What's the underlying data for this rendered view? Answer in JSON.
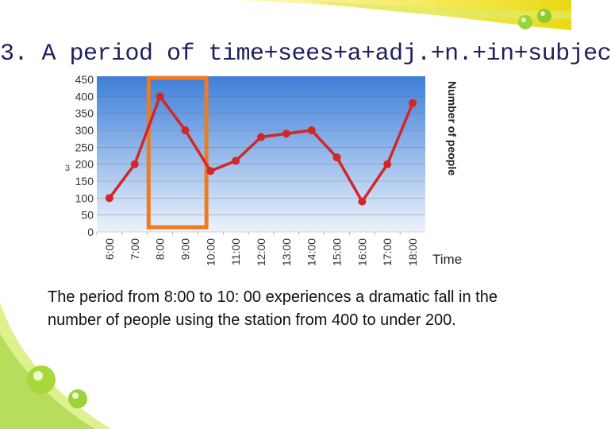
{
  "slide": {
    "title": "3. A period of time+sees+a+adj.+n.+in+subjec",
    "caption": "The period from 8:00 to 10: 00 experiences a dramatic fall in the number of people using the station from 400 to under 200.",
    "stray_mark": "3"
  },
  "colors": {
    "line": "#d32626",
    "highlight": "#f07a1e",
    "plot_top": "#3d7fd9",
    "plot_bottom": "#eef3fb",
    "title": "#1f1f5c"
  },
  "chart_data": {
    "type": "line",
    "x": [
      "6:00",
      "7:00",
      "8:00",
      "9:00",
      "10:00",
      "11:00",
      "12:00",
      "13:00",
      "14:00",
      "15:00",
      "16:00",
      "17:00",
      "18:00"
    ],
    "values": [
      100,
      200,
      400,
      300,
      180,
      210,
      280,
      290,
      300,
      220,
      90,
      200,
      380
    ],
    "yticks": [
      0,
      50,
      100,
      150,
      200,
      250,
      300,
      350,
      400,
      450
    ],
    "ylim": [
      0,
      450
    ],
    "xlabel": "Time",
    "ylabel": "Number of people",
    "grid": true,
    "highlight_range": [
      "8:00",
      "10:00"
    ]
  }
}
